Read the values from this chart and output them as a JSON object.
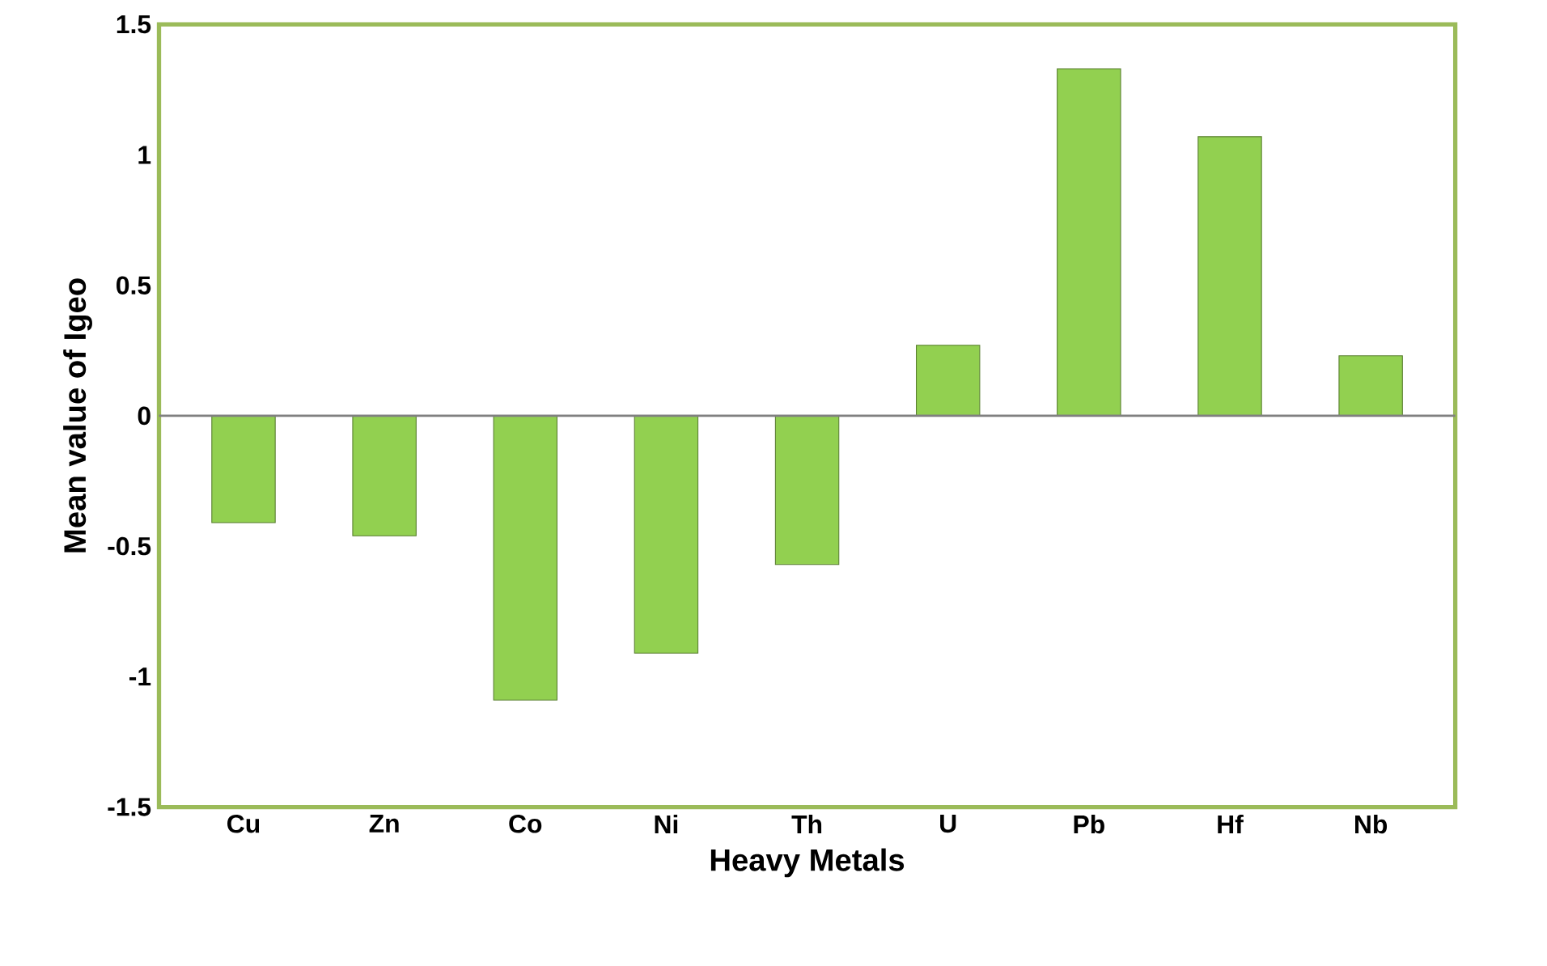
{
  "chart_data": {
    "type": "bar",
    "xlabel": "Heavy Metals",
    "ylabel": "Mean value of Igeo",
    "categories": [
      "Cu",
      "Zn",
      "Co",
      "Ni",
      "Th",
      "U",
      "Pb",
      "Hf",
      "Nb"
    ],
    "values": [
      -0.41,
      -0.46,
      -1.09,
      -0.91,
      -0.57,
      0.27,
      1.33,
      1.07,
      0.23
    ],
    "color": "#92d050",
    "ylim": [
      -1.5,
      1.5
    ],
    "yticks": [
      -1.5,
      -1,
      -0.5,
      0,
      0.5,
      1,
      1.5
    ],
    "ref_lines": [
      {
        "axis": "y",
        "value": 0,
        "color": "#808080"
      }
    ]
  }
}
